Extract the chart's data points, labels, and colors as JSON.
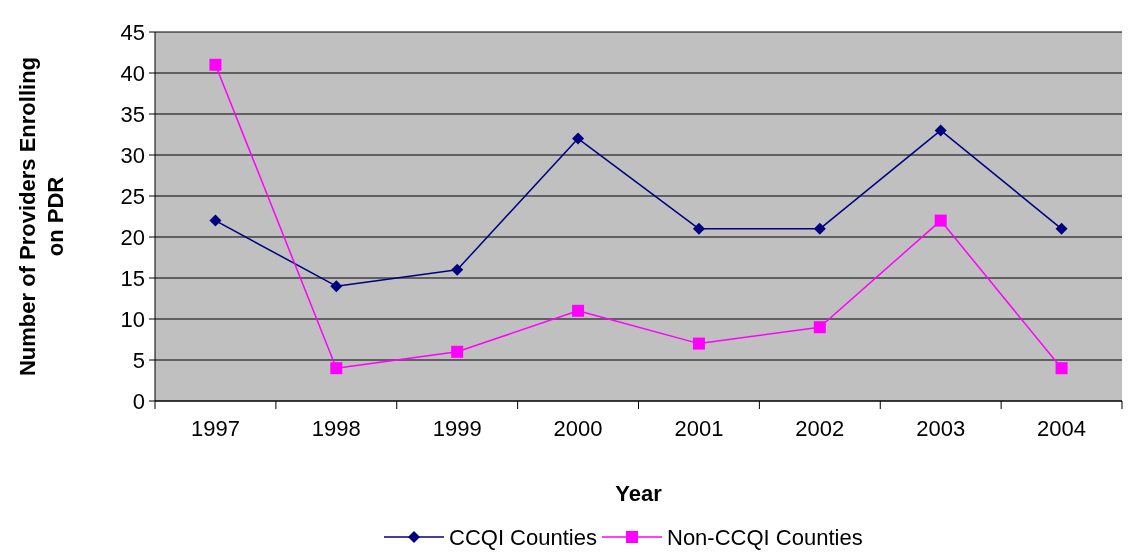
{
  "chart_data": {
    "type": "line",
    "xlabel": "Year",
    "ylabel": "Number of Providers Enrolling on PDR",
    "categories": [
      "1997",
      "1998",
      "1999",
      "2000",
      "2001",
      "2002",
      "2003",
      "2004"
    ],
    "series": [
      {
        "name": "CCQI Counties",
        "color": "#000080",
        "marker": "diamond",
        "values": [
          22,
          14,
          16,
          32,
          21,
          21,
          33,
          21
        ]
      },
      {
        "name": "Non-CCQI Counties",
        "color": "#ff00ff",
        "marker": "square",
        "values": [
          41,
          4,
          6,
          11,
          7,
          9,
          22,
          4
        ]
      }
    ],
    "ylim": [
      0,
      45
    ],
    "yticks": [
      0,
      5,
      10,
      15,
      20,
      25,
      30,
      35,
      40,
      45
    ],
    "grid": "y",
    "legend": "bottom",
    "line_style": "solid"
  }
}
